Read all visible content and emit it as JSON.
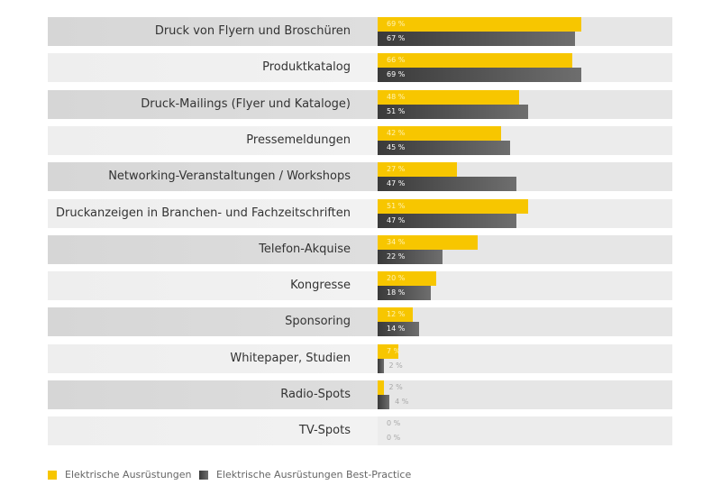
{
  "chart_data": {
    "type": "bar",
    "orientation": "horizontal",
    "categories": [
      "Druck von Flyern und Broschüren",
      "Produktkatalog",
      "Druck-Mailings (Flyer und Kataloge)",
      "Pressemeldungen",
      "Networking-Veranstaltungen / Workshops",
      "Druckanzeigen in Branchen- und Fachzeitschriften",
      "Telefon-Akquise",
      "Kongresse",
      "Sponsoring",
      "Whitepaper, Studien",
      "Radio-Spots",
      "TV-Spots"
    ],
    "series": [
      {
        "name": "Elektrische Ausrüstungen",
        "color": "#f7c600",
        "values": [
          69,
          66,
          48,
          42,
          27,
          51,
          34,
          20,
          12,
          7,
          2,
          0
        ]
      },
      {
        "name": "Elektrische Ausrüstungen Best-Practice",
        "color": "#4a4a4a",
        "values": [
          67,
          69,
          51,
          45,
          47,
          47,
          22,
          18,
          14,
          2,
          4,
          0
        ]
      }
    ],
    "unit": "%",
    "xlim": [
      0,
      100
    ],
    "grid": false,
    "legend": "bottom-left"
  }
}
